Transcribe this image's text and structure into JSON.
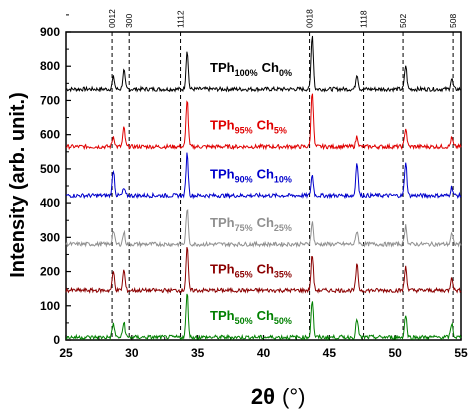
{
  "chart_data": {
    "type": "line",
    "xlabel_main": "2θ",
    "xlabel_unit": "(°)",
    "ylabel": "Intensity (arb. unit.)",
    "xlim": [
      25,
      55
    ],
    "ylim": [
      0,
      900
    ],
    "x_ticks": [
      "25",
      "30",
      "35",
      "40",
      "45",
      "50",
      "55"
    ],
    "y_ticks": [
      "0",
      "100",
      "200",
      "300",
      "400",
      "500",
      "600",
      "700",
      "800",
      "900"
    ],
    "reference_lines": [
      {
        "x": 28.5,
        "label": "0012"
      },
      {
        "x": 29.8,
        "label": "300"
      },
      {
        "x": 33.7,
        "label": "1112"
      },
      {
        "x": 43.5,
        "label": "0018"
      },
      {
        "x": 47.6,
        "label": "1118"
      },
      {
        "x": 50.6,
        "label": "502"
      },
      {
        "x": 54.4,
        "label": "508"
      }
    ],
    "series": [
      {
        "main1": "TPh",
        "sub1": "100%",
        "main2": "Ch",
        "sub2": "0%",
        "color": "#000000",
        "baseline": 733,
        "peaks": [
          [
            28.6,
            35
          ],
          [
            29.4,
            55
          ],
          [
            34.2,
            115
          ],
          [
            43.7,
            160
          ],
          [
            47.1,
            45
          ],
          [
            50.8,
            70
          ],
          [
            54.3,
            30
          ]
        ]
      },
      {
        "main1": "TPh",
        "sub1": "95%",
        "main2": "Ch",
        "sub2": "5%",
        "color": "#e00000",
        "baseline": 565,
        "peaks": [
          [
            28.6,
            30
          ],
          [
            29.4,
            55
          ],
          [
            34.2,
            140
          ],
          [
            43.7,
            165
          ],
          [
            47.1,
            30
          ],
          [
            50.8,
            55
          ],
          [
            54.3,
            25
          ]
        ]
      },
      {
        "main1": "TPh",
        "sub1": "90%",
        "main2": "Ch",
        "sub2": "10%",
        "color": "#0000cc",
        "baseline": 422,
        "peaks": [
          [
            28.6,
            75
          ],
          [
            29.4,
            20
          ],
          [
            34.2,
            125
          ],
          [
            43.7,
            60
          ],
          [
            47.1,
            100
          ],
          [
            50.8,
            100
          ],
          [
            54.3,
            25
          ]
        ]
      },
      {
        "main1": "TPh",
        "sub1": "75%",
        "main2": "Ch",
        "sub2": "25%",
        "color": "#909090",
        "baseline": 280,
        "peaks": [
          [
            28.6,
            40
          ],
          [
            29.4,
            35
          ],
          [
            34.2,
            105
          ],
          [
            43.7,
            65
          ],
          [
            47.1,
            40
          ],
          [
            50.8,
            55
          ],
          [
            54.3,
            30
          ]
        ]
      },
      {
        "main1": "TPh",
        "sub1": "65%",
        "main2": "Ch",
        "sub2": "35%",
        "color": "#8b0000",
        "baseline": 145,
        "peaks": [
          [
            28.6,
            55
          ],
          [
            29.4,
            60
          ],
          [
            34.2,
            130
          ],
          [
            43.7,
            105
          ],
          [
            47.1,
            75
          ],
          [
            50.8,
            70
          ],
          [
            54.3,
            40
          ]
        ]
      },
      {
        "main1": "TPh",
        "sub1": "50%",
        "main2": "Ch",
        "sub2": "50%",
        "color": "#008000",
        "baseline": 8,
        "peaks": [
          [
            28.6,
            40
          ],
          [
            29.4,
            45
          ],
          [
            34.2,
            130
          ],
          [
            43.7,
            110
          ],
          [
            47.1,
            55
          ],
          [
            50.8,
            65
          ],
          [
            54.3,
            40
          ]
        ]
      }
    ]
  }
}
